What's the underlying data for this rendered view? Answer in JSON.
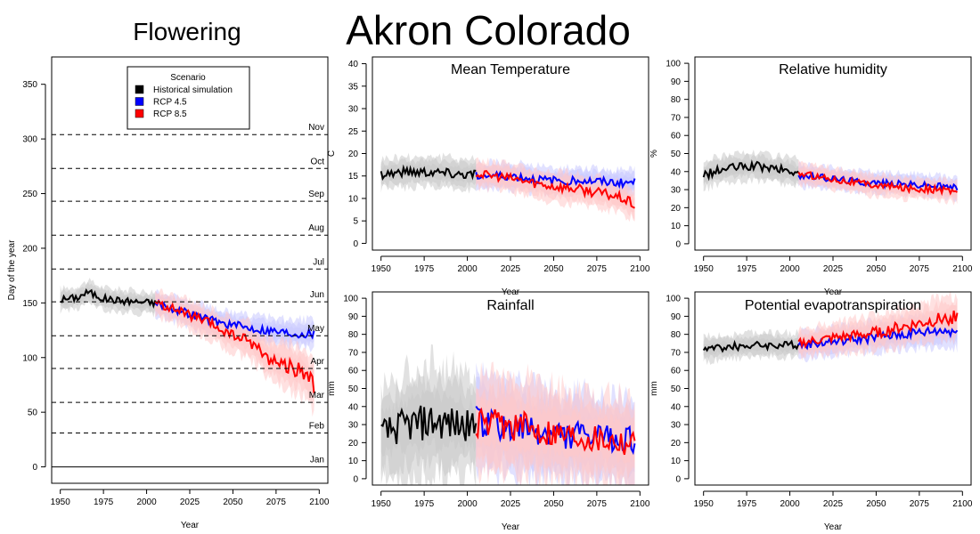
{
  "main_title": "Akron Colorado",
  "colors": {
    "historical": "#000000",
    "rcp45": "#0000ff",
    "rcp85": "#ff0000",
    "historical_band": "#c8c8c8",
    "rcp45_band": "#c8c8ff",
    "rcp85_band": "#ffc8c8"
  },
  "chart_data": [
    {
      "id": "flowering",
      "type": "line",
      "title": "Flowering",
      "xlabel": "Year",
      "ylabel": "Day of the year",
      "xlim": [
        1945,
        2105
      ],
      "ylim": [
        -15,
        375
      ],
      "xticks": [
        1950,
        1975,
        2000,
        2025,
        2050,
        2075,
        2100
      ],
      "yticks": [
        0,
        50,
        100,
        150,
        200,
        250,
        300,
        350
      ],
      "legend": {
        "title": "Scenario",
        "placement": "top-center",
        "entries": [
          "Historical simulation",
          "RCP 4.5",
          "RCP 8.5"
        ]
      },
      "reference_lines": [
        {
          "label": "Jan",
          "y": 0,
          "style": "solid"
        },
        {
          "label": "Feb",
          "y": 31,
          "style": "dashed"
        },
        {
          "label": "Mar",
          "y": 59,
          "style": "dashed"
        },
        {
          "label": "Apr",
          "y": 90,
          "style": "dashed"
        },
        {
          "label": "May",
          "y": 120,
          "style": "dashed"
        },
        {
          "label": "Jun",
          "y": 151,
          "style": "dashed"
        },
        {
          "label": "Jul",
          "y": 181,
          "style": "dashed"
        },
        {
          "label": "Aug",
          "y": 212,
          "style": "dashed"
        },
        {
          "label": "Sep",
          "y": 243,
          "style": "dashed"
        },
        {
          "label": "Oct",
          "y": 273,
          "style": "dashed"
        },
        {
          "label": "Nov",
          "y": 304,
          "style": "dashed"
        }
      ],
      "series": [
        {
          "name": "Historical simulation",
          "x": [
            1950,
            1960,
            1966,
            1975,
            1985,
            1995,
            2005
          ],
          "y": [
            153,
            155,
            160,
            154,
            152,
            151,
            150
          ],
          "band": [
            12,
            12,
            12,
            12,
            12,
            12,
            12
          ]
        },
        {
          "name": "RCP 4.5",
          "x": [
            2005,
            2025,
            2045,
            2060,
            2075,
            2085,
            2097
          ],
          "y": [
            150,
            140,
            131,
            127,
            124,
            122,
            122
          ],
          "band": [
            14,
            14,
            14,
            14,
            15,
            15,
            15
          ]
        },
        {
          "name": "RCP 8.5",
          "x": [
            2005,
            2020,
            2035,
            2050,
            2060,
            2070,
            2080,
            2090,
            2097
          ],
          "y": [
            150,
            142,
            132,
            120,
            115,
            100,
            93,
            88,
            75
          ],
          "band": [
            14,
            15,
            17,
            18,
            20,
            22,
            24,
            27,
            28
          ]
        }
      ]
    },
    {
      "id": "temperature",
      "type": "line",
      "title": "Mean Temperature",
      "xlabel": "Year",
      "ylabel": "C",
      "xlim": [
        1945,
        2105
      ],
      "ylim": [
        -1.5,
        41.5
      ],
      "xticks": [
        1950,
        1975,
        2000,
        2025,
        2050,
        2075,
        2100
      ],
      "yticks": [
        0,
        5,
        10,
        15,
        20,
        25,
        30,
        35,
        40
      ],
      "series": [
        {
          "name": "Historical simulation",
          "x": [
            1950,
            1965,
            1980,
            1995,
            2005
          ],
          "y": [
            15.5,
            16,
            16,
            15.5,
            15.5
          ],
          "band": [
            4,
            4,
            4,
            4,
            4
          ]
        },
        {
          "name": "RCP 4.5",
          "x": [
            2005,
            2025,
            2045,
            2065,
            2085,
            2097
          ],
          "y": [
            15,
            15,
            14,
            14,
            13.5,
            13.5
          ],
          "band": [
            3.5,
            3.5,
            3.5,
            3.5,
            3.5,
            3.5
          ]
        },
        {
          "name": "RCP 8.5",
          "x": [
            2005,
            2025,
            2045,
            2065,
            2080,
            2090,
            2097
          ],
          "y": [
            15.5,
            14.5,
            13,
            12,
            11,
            10,
            8.5
          ],
          "band": [
            3.5,
            3.5,
            4,
            4,
            4,
            4,
            4
          ]
        }
      ]
    },
    {
      "id": "humidity",
      "type": "line",
      "title": "Relative humidity",
      "xlabel": "Year",
      "ylabel": "%",
      "xlim": [
        1945,
        2105
      ],
      "ylim": [
        -3.5,
        103.5
      ],
      "xticks": [
        1950,
        1975,
        2000,
        2025,
        2050,
        2075,
        2100
      ],
      "yticks": [
        0,
        10,
        20,
        30,
        40,
        50,
        60,
        70,
        80,
        90,
        100
      ],
      "series": [
        {
          "name": "Historical simulation",
          "x": [
            1950,
            1965,
            1980,
            1995,
            2005
          ],
          "y": [
            38,
            42,
            43,
            41,
            39
          ],
          "band": [
            9,
            9,
            9,
            9,
            9
          ]
        },
        {
          "name": "RCP 4.5",
          "x": [
            2005,
            2025,
            2045,
            2065,
            2085,
            2097
          ],
          "y": [
            38,
            36,
            34,
            33,
            32,
            31
          ],
          "band": [
            7,
            7,
            7,
            7,
            7,
            7
          ]
        },
        {
          "name": "RCP 8.5",
          "x": [
            2005,
            2025,
            2045,
            2065,
            2085,
            2097
          ],
          "y": [
            39,
            36,
            33,
            31,
            30,
            29
          ],
          "band": [
            7,
            7,
            7,
            7,
            7,
            7
          ]
        }
      ]
    },
    {
      "id": "rainfall",
      "type": "line",
      "title": "Rainfall",
      "xlabel": "Year",
      "ylabel": "mm",
      "xlim": [
        1945,
        2105
      ],
      "ylim": [
        -3.5,
        103.5
      ],
      "xticks": [
        1950,
        1975,
        2000,
        2025,
        2050,
        2075,
        2100
      ],
      "yticks": [
        0,
        10,
        20,
        30,
        40,
        50,
        60,
        70,
        80,
        90,
        100
      ],
      "series": [
        {
          "name": "Historical simulation",
          "x": [
            1950,
            1965,
            1980,
            1995,
            2005
          ],
          "y": [
            25,
            30,
            32,
            30,
            28
          ],
          "band": [
            30,
            35,
            38,
            35,
            30
          ]
        },
        {
          "name": "RCP 4.5",
          "x": [
            2005,
            2025,
            2045,
            2065,
            2085,
            2097
          ],
          "y": [
            32,
            28,
            25,
            24,
            22,
            22
          ],
          "band": [
            30,
            32,
            30,
            28,
            28,
            28
          ]
        },
        {
          "name": "RCP 8.5",
          "x": [
            2005,
            2025,
            2045,
            2065,
            2085,
            2097
          ],
          "y": [
            30,
            30,
            27,
            24,
            22,
            20
          ],
          "band": [
            30,
            32,
            30,
            28,
            28,
            28
          ]
        }
      ]
    },
    {
      "id": "pet",
      "type": "line",
      "title": "Potential evapotranspiration",
      "xlabel": "Year",
      "ylabel": "mm",
      "xlim": [
        1945,
        2105
      ],
      "ylim": [
        -3.5,
        103.5
      ],
      "xticks": [
        1950,
        1975,
        2000,
        2025,
        2050,
        2075,
        2100
      ],
      "yticks": [
        0,
        10,
        20,
        30,
        40,
        50,
        60,
        70,
        80,
        90,
        100
      ],
      "series": [
        {
          "name": "Historical simulation",
          "x": [
            1950,
            1965,
            1980,
            1995,
            2005
          ],
          "y": [
            72,
            73,
            74,
            74,
            74
          ],
          "band": [
            8,
            8,
            8,
            8,
            8
          ]
        },
        {
          "name": "RCP 4.5",
          "x": [
            2005,
            2025,
            2045,
            2065,
            2085,
            2097
          ],
          "y": [
            74,
            76,
            78,
            80,
            82,
            82
          ],
          "band": [
            9,
            9,
            10,
            10,
            11,
            11
          ]
        },
        {
          "name": "RCP 8.5",
          "x": [
            2005,
            2025,
            2045,
            2065,
            2085,
            2097
          ],
          "y": [
            75,
            78,
            80,
            84,
            88,
            90
          ],
          "band": [
            9,
            10,
            11,
            12,
            13,
            14
          ]
        }
      ]
    }
  ]
}
